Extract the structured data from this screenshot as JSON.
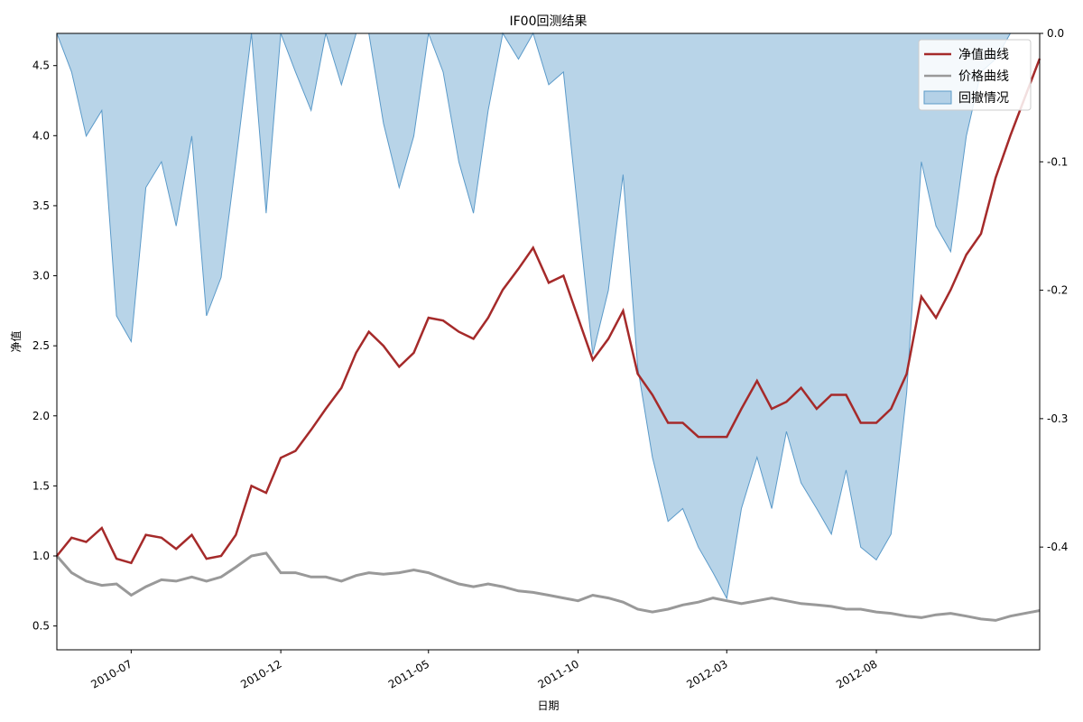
{
  "chart_data": {
    "type": "line",
    "title": "IF00回测结果",
    "xlabel": "日期",
    "ylabel_left": "净值",
    "ylabel_right": "",
    "x_ticks": [
      "2010-07",
      "2010-12",
      "2011-05",
      "2011-10",
      "2012-03",
      "2012-08"
    ],
    "x_range": [
      "2010-04-16",
      "2013-01-15"
    ],
    "ylim_left": [
      0.33,
      4.73
    ],
    "ylim_right": [
      -0.48,
      0.0
    ],
    "y_ticks_left": [
      "0.5",
      "1.0",
      "1.5",
      "2.0",
      "2.5",
      "3.0",
      "3.5",
      "4.0",
      "4.5"
    ],
    "y_ticks_right": [
      "0.0",
      "-0.1",
      "-0.2",
      "-0.3",
      "-0.4"
    ],
    "legend": {
      "placement": "top-right",
      "items": [
        {
          "label": "净值曲线",
          "kind": "line",
          "color": "#a52a2a"
        },
        {
          "label": "价格曲线",
          "kind": "line",
          "color": "#999999"
        },
        {
          "label": "回撤情况",
          "kind": "area",
          "color": "#7eb0d5"
        }
      ]
    },
    "series": [
      {
        "name": "净值曲线",
        "axis": "left",
        "color": "#a52a2a",
        "points": [
          [
            "2010-04-16",
            1.0
          ],
          [
            "2010-05-01",
            1.13
          ],
          [
            "2010-05-16",
            1.1
          ],
          [
            "2010-06-01",
            1.2
          ],
          [
            "2010-06-16",
            0.98
          ],
          [
            "2010-07-01",
            0.95
          ],
          [
            "2010-07-16",
            1.15
          ],
          [
            "2010-08-01",
            1.13
          ],
          [
            "2010-08-16",
            1.05
          ],
          [
            "2010-09-01",
            1.15
          ],
          [
            "2010-09-16",
            0.98
          ],
          [
            "2010-10-01",
            1.0
          ],
          [
            "2010-10-16",
            1.15
          ],
          [
            "2010-11-01",
            1.5
          ],
          [
            "2010-11-16",
            1.45
          ],
          [
            "2010-12-01",
            1.7
          ],
          [
            "2010-12-16",
            1.75
          ],
          [
            "2011-01-01",
            1.9
          ],
          [
            "2011-01-16",
            2.05
          ],
          [
            "2011-02-01",
            2.2
          ],
          [
            "2011-02-16",
            2.45
          ],
          [
            "2011-03-01",
            2.6
          ],
          [
            "2011-03-16",
            2.5
          ],
          [
            "2011-04-01",
            2.35
          ],
          [
            "2011-04-16",
            2.45
          ],
          [
            "2011-05-01",
            2.7
          ],
          [
            "2011-05-16",
            2.68
          ],
          [
            "2011-06-01",
            2.6
          ],
          [
            "2011-06-16",
            2.55
          ],
          [
            "2011-07-01",
            2.7
          ],
          [
            "2011-07-16",
            2.9
          ],
          [
            "2011-08-01",
            3.05
          ],
          [
            "2011-08-16",
            3.2
          ],
          [
            "2011-09-01",
            2.95
          ],
          [
            "2011-09-16",
            3.0
          ],
          [
            "2011-10-01",
            2.7
          ],
          [
            "2011-10-16",
            2.4
          ],
          [
            "2011-11-01",
            2.55
          ],
          [
            "2011-11-16",
            2.75
          ],
          [
            "2011-12-01",
            2.3
          ],
          [
            "2011-12-16",
            2.15
          ],
          [
            "2012-01-01",
            1.95
          ],
          [
            "2012-01-16",
            1.95
          ],
          [
            "2012-02-01",
            1.85
          ],
          [
            "2012-02-16",
            1.85
          ],
          [
            "2012-03-01",
            1.85
          ],
          [
            "2012-03-16",
            2.05
          ],
          [
            "2012-04-01",
            2.25
          ],
          [
            "2012-04-16",
            2.05
          ],
          [
            "2012-05-01",
            2.1
          ],
          [
            "2012-05-16",
            2.2
          ],
          [
            "2012-06-01",
            2.05
          ],
          [
            "2012-06-16",
            2.15
          ],
          [
            "2012-07-01",
            2.15
          ],
          [
            "2012-07-16",
            1.95
          ],
          [
            "2012-08-01",
            1.95
          ],
          [
            "2012-08-16",
            2.05
          ],
          [
            "2012-09-01",
            2.3
          ],
          [
            "2012-09-16",
            2.85
          ],
          [
            "2012-10-01",
            2.7
          ],
          [
            "2012-10-16",
            2.9
          ],
          [
            "2012-11-01",
            3.15
          ],
          [
            "2012-11-16",
            3.3
          ],
          [
            "2012-12-01",
            3.7
          ],
          [
            "2012-12-16",
            4.0
          ],
          [
            "2013-01-15",
            4.55
          ]
        ]
      },
      {
        "name": "价格曲线",
        "axis": "left",
        "color": "#999999",
        "points": [
          [
            "2010-04-16",
            1.0
          ],
          [
            "2010-05-01",
            0.88
          ],
          [
            "2010-05-16",
            0.82
          ],
          [
            "2010-06-01",
            0.79
          ],
          [
            "2010-06-16",
            0.8
          ],
          [
            "2010-07-01",
            0.72
          ],
          [
            "2010-07-16",
            0.78
          ],
          [
            "2010-08-01",
            0.83
          ],
          [
            "2010-08-16",
            0.82
          ],
          [
            "2010-09-01",
            0.85
          ],
          [
            "2010-09-16",
            0.82
          ],
          [
            "2010-10-01",
            0.85
          ],
          [
            "2010-10-16",
            0.92
          ],
          [
            "2010-11-01",
            1.0
          ],
          [
            "2010-11-16",
            1.02
          ],
          [
            "2010-12-01",
            0.88
          ],
          [
            "2010-12-16",
            0.88
          ],
          [
            "2011-01-01",
            0.85
          ],
          [
            "2011-01-16",
            0.85
          ],
          [
            "2011-02-01",
            0.82
          ],
          [
            "2011-02-16",
            0.86
          ],
          [
            "2011-03-01",
            0.88
          ],
          [
            "2011-03-16",
            0.87
          ],
          [
            "2011-04-01",
            0.88
          ],
          [
            "2011-04-16",
            0.9
          ],
          [
            "2011-05-01",
            0.88
          ],
          [
            "2011-05-16",
            0.84
          ],
          [
            "2011-06-01",
            0.8
          ],
          [
            "2011-06-16",
            0.78
          ],
          [
            "2011-07-01",
            0.8
          ],
          [
            "2011-07-16",
            0.78
          ],
          [
            "2011-08-01",
            0.75
          ],
          [
            "2011-08-16",
            0.74
          ],
          [
            "2011-09-01",
            0.72
          ],
          [
            "2011-09-16",
            0.7
          ],
          [
            "2011-10-01",
            0.68
          ],
          [
            "2011-10-16",
            0.72
          ],
          [
            "2011-11-01",
            0.7
          ],
          [
            "2011-11-16",
            0.67
          ],
          [
            "2011-12-01",
            0.62
          ],
          [
            "2011-12-16",
            0.6
          ],
          [
            "2012-01-01",
            0.62
          ],
          [
            "2012-01-16",
            0.65
          ],
          [
            "2012-02-01",
            0.67
          ],
          [
            "2012-02-16",
            0.7
          ],
          [
            "2012-03-01",
            0.68
          ],
          [
            "2012-03-16",
            0.66
          ],
          [
            "2012-04-01",
            0.68
          ],
          [
            "2012-04-16",
            0.7
          ],
          [
            "2012-05-01",
            0.68
          ],
          [
            "2012-05-16",
            0.66
          ],
          [
            "2012-06-01",
            0.65
          ],
          [
            "2012-06-16",
            0.64
          ],
          [
            "2012-07-01",
            0.62
          ],
          [
            "2012-07-16",
            0.62
          ],
          [
            "2012-08-01",
            0.6
          ],
          [
            "2012-08-16",
            0.59
          ],
          [
            "2012-09-01",
            0.57
          ],
          [
            "2012-09-16",
            0.56
          ],
          [
            "2012-10-01",
            0.58
          ],
          [
            "2012-10-16",
            0.59
          ],
          [
            "2012-11-01",
            0.57
          ],
          [
            "2012-11-16",
            0.55
          ],
          [
            "2012-12-01",
            0.54
          ],
          [
            "2012-12-16",
            0.57
          ],
          [
            "2013-01-15",
            0.61
          ]
        ]
      },
      {
        "name": "回撤情况",
        "axis": "right",
        "type": "area",
        "color": "#7eb0d5",
        "points": [
          [
            "2010-04-16",
            0.0
          ],
          [
            "2010-05-01",
            -0.03
          ],
          [
            "2010-05-16",
            -0.08
          ],
          [
            "2010-06-01",
            -0.06
          ],
          [
            "2010-06-16",
            -0.22
          ],
          [
            "2010-07-01",
            -0.24
          ],
          [
            "2010-07-16",
            -0.12
          ],
          [
            "2010-08-01",
            -0.1
          ],
          [
            "2010-08-16",
            -0.15
          ],
          [
            "2010-09-01",
            -0.08
          ],
          [
            "2010-09-16",
            -0.22
          ],
          [
            "2010-10-01",
            -0.19
          ],
          [
            "2010-10-16",
            -0.1
          ],
          [
            "2010-11-01",
            0.0
          ],
          [
            "2010-11-16",
            -0.14
          ],
          [
            "2010-12-01",
            0.0
          ],
          [
            "2010-12-16",
            -0.03
          ],
          [
            "2011-01-01",
            -0.06
          ],
          [
            "2011-01-16",
            0.0
          ],
          [
            "2011-02-01",
            -0.04
          ],
          [
            "2011-02-16",
            0.0
          ],
          [
            "2011-03-01",
            0.0
          ],
          [
            "2011-03-16",
            -0.07
          ],
          [
            "2011-04-01",
            -0.12
          ],
          [
            "2011-04-16",
            -0.08
          ],
          [
            "2011-05-01",
            0.0
          ],
          [
            "2011-05-16",
            -0.03
          ],
          [
            "2011-06-01",
            -0.1
          ],
          [
            "2011-06-16",
            -0.14
          ],
          [
            "2011-07-01",
            -0.06
          ],
          [
            "2011-07-16",
            0.0
          ],
          [
            "2011-08-01",
            -0.02
          ],
          [
            "2011-08-16",
            0.0
          ],
          [
            "2011-09-01",
            -0.04
          ],
          [
            "2011-09-16",
            -0.03
          ],
          [
            "2011-10-01",
            -0.14
          ],
          [
            "2011-10-16",
            -0.25
          ],
          [
            "2011-11-01",
            -0.2
          ],
          [
            "2011-11-16",
            -0.11
          ],
          [
            "2011-12-01",
            -0.26
          ],
          [
            "2011-12-16",
            -0.33
          ],
          [
            "2012-01-01",
            -0.38
          ],
          [
            "2012-01-16",
            -0.37
          ],
          [
            "2012-02-01",
            -0.4
          ],
          [
            "2012-02-16",
            -0.42
          ],
          [
            "2012-03-01",
            -0.44
          ],
          [
            "2012-03-16",
            -0.37
          ],
          [
            "2012-04-01",
            -0.33
          ],
          [
            "2012-04-16",
            -0.37
          ],
          [
            "2012-05-01",
            -0.31
          ],
          [
            "2012-05-16",
            -0.35
          ],
          [
            "2012-06-01",
            -0.37
          ],
          [
            "2012-06-16",
            -0.39
          ],
          [
            "2012-07-01",
            -0.34
          ],
          [
            "2012-07-16",
            -0.4
          ],
          [
            "2012-08-01",
            -0.41
          ],
          [
            "2012-08-16",
            -0.39
          ],
          [
            "2012-09-01",
            -0.28
          ],
          [
            "2012-09-16",
            -0.1
          ],
          [
            "2012-10-01",
            -0.15
          ],
          [
            "2012-10-16",
            -0.17
          ],
          [
            "2012-11-01",
            -0.08
          ],
          [
            "2012-11-16",
            -0.03
          ],
          [
            "2012-12-01",
            -0.02
          ],
          [
            "2012-12-16",
            0.0
          ],
          [
            "2013-01-15",
            0.0
          ]
        ]
      }
    ]
  }
}
